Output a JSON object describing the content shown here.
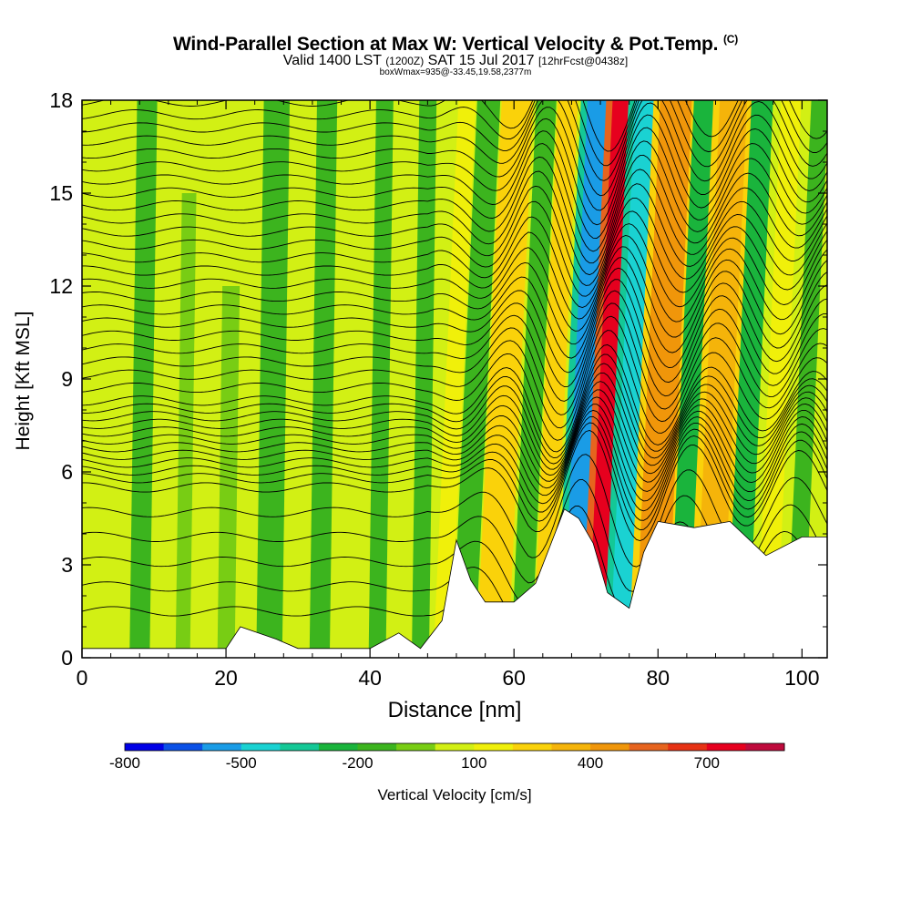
{
  "title": {
    "main": "Wind-Parallel Section at Max W: Vertical Velocity & Pot.Temp.",
    "copyright": "(C)",
    "valid": "Valid 1400 LST",
    "utc": "(1200Z)",
    "date": "SAT 15 Jul 2017",
    "forecast": "[12hrFcst@0438z]",
    "box_info": "boxWmax=935@-33.45,19.58,2377m"
  },
  "chart_data": {
    "type": "heatmap",
    "title": "Wind-Parallel Section at Max W: Vertical Velocity & Pot.Temp.",
    "xlabel": "Distance [nm]",
    "ylabel": "Height [Kft MSL]",
    "xlim": [
      0,
      103.5
    ],
    "ylim": [
      0,
      18
    ],
    "x_ticks": [
      0,
      20,
      40,
      60,
      80,
      100
    ],
    "y_ticks": [
      0,
      3,
      6,
      9,
      12,
      15,
      18
    ],
    "colorbar": {
      "label": "Vertical Velocity [cm/s]",
      "tick_labels": [
        "-800",
        "-500",
        "-200",
        "100",
        "400",
        "700"
      ],
      "tick_values": [
        -800,
        -500,
        -200,
        100,
        400,
        700
      ],
      "levels": [
        -800,
        -700,
        -600,
        -500,
        -400,
        -300,
        -200,
        -100,
        0,
        100,
        200,
        300,
        400,
        500,
        600,
        700,
        800
      ],
      "colors": [
        "#0000e6",
        "#0a50e6",
        "#1a9ce6",
        "#1ad2d2",
        "#14c896",
        "#1ab43c",
        "#3cb41e",
        "#78cd14",
        "#d2f014",
        "#f0f00a",
        "#fad20a",
        "#f5b40a",
        "#f0960a",
        "#e6641e",
        "#e63214",
        "#e6001e",
        "#be0a3c"
      ]
    },
    "background_w_cms": 20,
    "vertical_velocity_bands": [
      {
        "x": 8,
        "w": -120,
        "width_nm": 1.4,
        "top_kft": 18
      },
      {
        "x": 14,
        "w": -80,
        "width_nm": 1.0,
        "top_kft": 15
      },
      {
        "x": 20,
        "w": -100,
        "width_nm": 1.2,
        "top_kft": 12
      },
      {
        "x": 26,
        "w": -150,
        "width_nm": 1.8,
        "top_kft": 18
      },
      {
        "x": 33,
        "w": -130,
        "width_nm": 1.4,
        "top_kft": 18
      },
      {
        "x": 41,
        "w": -110,
        "width_nm": 1.2,
        "top_kft": 18
      },
      {
        "x": 47,
        "w": -120,
        "width_nm": 1.2,
        "top_kft": 18
      },
      {
        "x": 50,
        "w": 160,
        "width_nm": 1.2,
        "top_kft": 18
      },
      {
        "x": 53,
        "w": -200,
        "width_nm": 1.6,
        "top_kft": 18
      },
      {
        "x": 57,
        "w": 260,
        "width_nm": 2.2,
        "top_kft": 18
      },
      {
        "x": 61,
        "w": -160,
        "width_nm": 1.4,
        "top_kft": 18
      },
      {
        "x": 64,
        "w": 200,
        "width_nm": 1.4,
        "top_kft": 18
      },
      {
        "x": 68.5,
        "w": -520,
        "width_nm": 1.8,
        "top_kft": 18
      },
      {
        "x": 71.5,
        "w": 720,
        "width_nm": 1.3,
        "top_kft": 18
      },
      {
        "x": 75,
        "w": -480,
        "width_nm": 1.7,
        "top_kft": 18
      },
      {
        "x": 79,
        "w": 420,
        "width_nm": 2.2,
        "top_kft": 18
      },
      {
        "x": 83,
        "w": -260,
        "width_nm": 1.5,
        "top_kft": 18
      },
      {
        "x": 87,
        "w": 360,
        "width_nm": 1.9,
        "top_kft": 18
      },
      {
        "x": 91,
        "w": -250,
        "width_nm": 1.5,
        "top_kft": 18
      },
      {
        "x": 95,
        "w": 120,
        "width_nm": 1.4,
        "top_kft": 18
      },
      {
        "x": 99,
        "w": -150,
        "width_nm": 1.2,
        "top_kft": 18
      }
    ],
    "terrain_kft": [
      [
        0,
        0.3
      ],
      [
        10,
        0.3
      ],
      [
        20,
        0.3
      ],
      [
        22,
        1.0
      ],
      [
        27,
        0.6
      ],
      [
        30,
        0.3
      ],
      [
        40,
        0.3
      ],
      [
        44,
        0.8
      ],
      [
        47,
        0.3
      ],
      [
        50,
        1.2
      ],
      [
        52,
        3.8
      ],
      [
        54,
        2.5
      ],
      [
        56,
        1.8
      ],
      [
        60,
        1.8
      ],
      [
        63,
        2.4
      ],
      [
        65,
        3.6
      ],
      [
        67,
        4.8
      ],
      [
        69,
        4.5
      ],
      [
        71,
        3.7
      ],
      [
        73,
        2.1
      ],
      [
        76,
        1.6
      ],
      [
        78,
        3.4
      ],
      [
        80,
        4.4
      ],
      [
        85,
        4.2
      ],
      [
        90,
        4.4
      ],
      [
        95,
        3.3
      ],
      [
        100,
        3.9
      ],
      [
        103.5,
        3.9
      ]
    ],
    "potential_temperature_contours": "black isentropes, ~1 K interval, compressed near 6-7 Kft and deflected by waves east of 50 nm"
  }
}
